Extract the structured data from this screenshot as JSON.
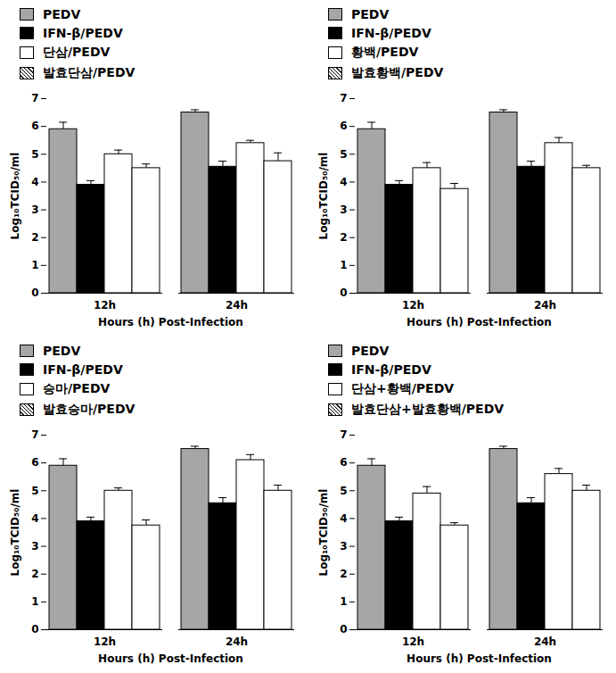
{
  "chart_data": [
    {
      "type": "bar",
      "categories": [
        "12h",
        "24h"
      ],
      "x_label": "Hours (h) Post-Infection",
      "y_label": "Log₁₀TCID₅₀/ml",
      "ylim": [
        0,
        7
      ],
      "yticks": [
        0,
        1,
        2,
        3,
        4,
        5,
        6,
        7
      ],
      "legend": "top-left",
      "series": [
        {
          "name": "PEDV",
          "color": "#a6a6a6",
          "values": [
            5.9,
            6.5
          ],
          "errors": [
            0.25,
            0.1
          ]
        },
        {
          "name": "IFN-β/PEDV",
          "color": "#000000",
          "values": [
            3.9,
            4.55
          ],
          "errors": [
            0.15,
            0.2
          ]
        },
        {
          "name": "단삼/PEDV",
          "color": "#ffffff",
          "values": [
            5.0,
            5.4
          ],
          "errors": [
            0.15,
            0.1
          ]
        },
        {
          "name": "발효단삼/PEDV",
          "color": "#ffffff",
          "line_style": "hatched",
          "values": [
            4.5,
            4.75
          ],
          "errors": [
            0.15,
            0.3
          ]
        }
      ]
    },
    {
      "type": "bar",
      "categories": [
        "12h",
        "24h"
      ],
      "x_label": "Hours (h) Post-Infection",
      "y_label": "Log₁₀TCID₅₀/ml",
      "ylim": [
        0,
        7
      ],
      "yticks": [
        0,
        1,
        2,
        3,
        4,
        5,
        6,
        7
      ],
      "legend": "top-left",
      "series": [
        {
          "name": "PEDV",
          "color": "#a6a6a6",
          "values": [
            5.9,
            6.5
          ],
          "errors": [
            0.25,
            0.1
          ]
        },
        {
          "name": "IFN-β/PEDV",
          "color": "#000000",
          "values": [
            3.9,
            4.55
          ],
          "errors": [
            0.15,
            0.2
          ]
        },
        {
          "name": "황백/PEDV",
          "color": "#ffffff",
          "values": [
            4.5,
            5.4
          ],
          "errors": [
            0.2,
            0.2
          ]
        },
        {
          "name": "발효황백/PEDV",
          "color": "#ffffff",
          "line_style": "hatched",
          "values": [
            3.75,
            4.5
          ],
          "errors": [
            0.2,
            0.1
          ]
        }
      ]
    },
    {
      "type": "bar",
      "categories": [
        "12h",
        "24h"
      ],
      "x_label": "Hours (h) Post-Infection",
      "y_label": "Log₁₀TCID₅₀/ml",
      "ylim": [
        0,
        7
      ],
      "yticks": [
        0,
        1,
        2,
        3,
        4,
        5,
        6,
        7
      ],
      "legend": "top-left",
      "series": [
        {
          "name": "PEDV",
          "color": "#a6a6a6",
          "values": [
            5.9,
            6.5
          ],
          "errors": [
            0.25,
            0.1
          ]
        },
        {
          "name": "IFN-β/PEDV",
          "color": "#000000",
          "values": [
            3.9,
            4.55
          ],
          "errors": [
            0.15,
            0.2
          ]
        },
        {
          "name": "승마/PEDV",
          "color": "#ffffff",
          "values": [
            5.0,
            6.1
          ],
          "errors": [
            0.1,
            0.2
          ]
        },
        {
          "name": "발효승마/PEDV",
          "color": "#ffffff",
          "line_style": "hatched",
          "values": [
            3.75,
            5.0
          ],
          "errors": [
            0.2,
            0.2
          ]
        }
      ]
    },
    {
      "type": "bar",
      "categories": [
        "12h",
        "24h"
      ],
      "x_label": "Hours (h) Post-Infection",
      "y_label": "Log₁₀TCID₅₀/ml",
      "ylim": [
        0,
        7
      ],
      "yticks": [
        0,
        1,
        2,
        3,
        4,
        5,
        6,
        7
      ],
      "legend": "top-left",
      "series": [
        {
          "name": "PEDV",
          "color": "#a6a6a6",
          "values": [
            5.9,
            6.5
          ],
          "errors": [
            0.25,
            0.1
          ]
        },
        {
          "name": "IFN-β/PEDV",
          "color": "#000000",
          "values": [
            3.9,
            4.55
          ],
          "errors": [
            0.15,
            0.2
          ]
        },
        {
          "name": "단삼+황백/PEDV",
          "color": "#ffffff",
          "values": [
            4.9,
            5.6
          ],
          "errors": [
            0.25,
            0.2
          ]
        },
        {
          "name": "발효단삼+발효황백/PEDV",
          "color": "#ffffff",
          "line_style": "hatched",
          "values": [
            3.75,
            5.0
          ],
          "errors": [
            0.1,
            0.2
          ]
        }
      ]
    }
  ]
}
